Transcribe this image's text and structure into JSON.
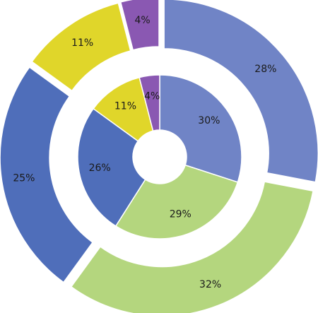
{
  "chart_data": {
    "type": "pie",
    "title": "",
    "rings": [
      {
        "name": "",
        "slices": [
          {
            "value": 30,
            "label": "30%",
            "color": "#7084C6"
          },
          {
            "value": 29,
            "label": "29%",
            "color": "#B4D67E"
          },
          {
            "value": 26,
            "label": "26%",
            "color": "#4F6EBA"
          },
          {
            "value": 11,
            "label": "11%",
            "color": "#E0D62A"
          },
          {
            "value": 4,
            "label": "4%",
            "color": "#8A58B2"
          }
        ]
      },
      {
        "name": "",
        "slices": [
          {
            "value": 28,
            "label": "28%",
            "color": "#7084C6"
          },
          {
            "value": 32,
            "label": "32%",
            "color": "#B4D67E"
          },
          {
            "value": 25,
            "label": "25%",
            "color": "#4F6EBA"
          },
          {
            "value": 11,
            "label": "11%",
            "color": "#E0D62A"
          },
          {
            "value": 4,
            "label": "4%",
            "color": "#8A58B2"
          }
        ]
      }
    ],
    "legend": "none",
    "start_angle": "12 o'clock, clockwise",
    "exploded": true
  }
}
